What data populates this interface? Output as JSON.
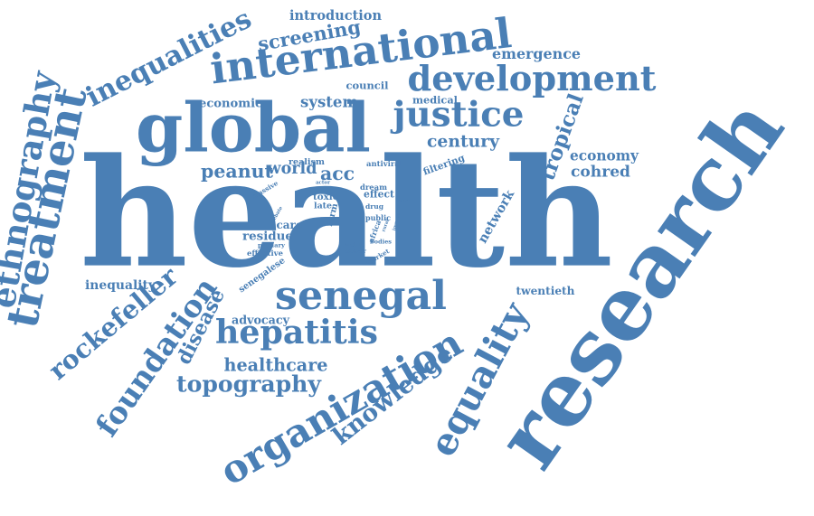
{
  "cloud": {
    "color": "#4a7fb5",
    "background": "#ffffff",
    "words": [
      {
        "text": "health"
      },
      {
        "text": "research"
      },
      {
        "text": "global"
      },
      {
        "text": "international"
      },
      {
        "text": "development"
      },
      {
        "text": "justice"
      },
      {
        "text": "senegal"
      },
      {
        "text": "equality"
      },
      {
        "text": "organization"
      },
      {
        "text": "hepatitis"
      },
      {
        "text": "treatment"
      },
      {
        "text": "inequalities"
      },
      {
        "text": "ethnography"
      },
      {
        "text": "foundation"
      },
      {
        "text": "knowledge"
      },
      {
        "text": "rockefeller"
      },
      {
        "text": "healthcare"
      },
      {
        "text": "topography"
      },
      {
        "text": "disease"
      },
      {
        "text": "peanut"
      },
      {
        "text": "world"
      },
      {
        "text": "acc"
      },
      {
        "text": "economy"
      },
      {
        "text": "tropical"
      },
      {
        "text": "cohred"
      },
      {
        "text": "century"
      },
      {
        "text": "screening"
      },
      {
        "text": "introduction"
      },
      {
        "text": "emergence"
      },
      {
        "text": "council"
      },
      {
        "text": "system"
      },
      {
        "text": "medical"
      },
      {
        "text": "economic"
      },
      {
        "text": "inequality"
      },
      {
        "text": "advocacy"
      },
      {
        "text": "twentieth"
      },
      {
        "text": "network"
      },
      {
        "text": "residue"
      },
      {
        "text": "care"
      },
      {
        "text": "effect"
      },
      {
        "text": "realism"
      },
      {
        "text": "antiviral"
      },
      {
        "text": "filtering"
      },
      {
        "text": "massive"
      },
      {
        "text": "toxic"
      },
      {
        "text": "late"
      },
      {
        "text": "dream"
      },
      {
        "text": "drug"
      },
      {
        "text": "public"
      },
      {
        "text": "form"
      },
      {
        "text": "primary"
      },
      {
        "text": "effective"
      },
      {
        "text": "africa"
      },
      {
        "text": "bodies"
      },
      {
        "text": "article"
      },
      {
        "text": "cancer"
      },
      {
        "text": "market"
      },
      {
        "text": "senegalese"
      },
      {
        "text": "actor"
      },
      {
        "text": "debate"
      },
      {
        "text": "work"
      },
      {
        "text": "rural"
      },
      {
        "text": "impact"
      }
    ]
  }
}
